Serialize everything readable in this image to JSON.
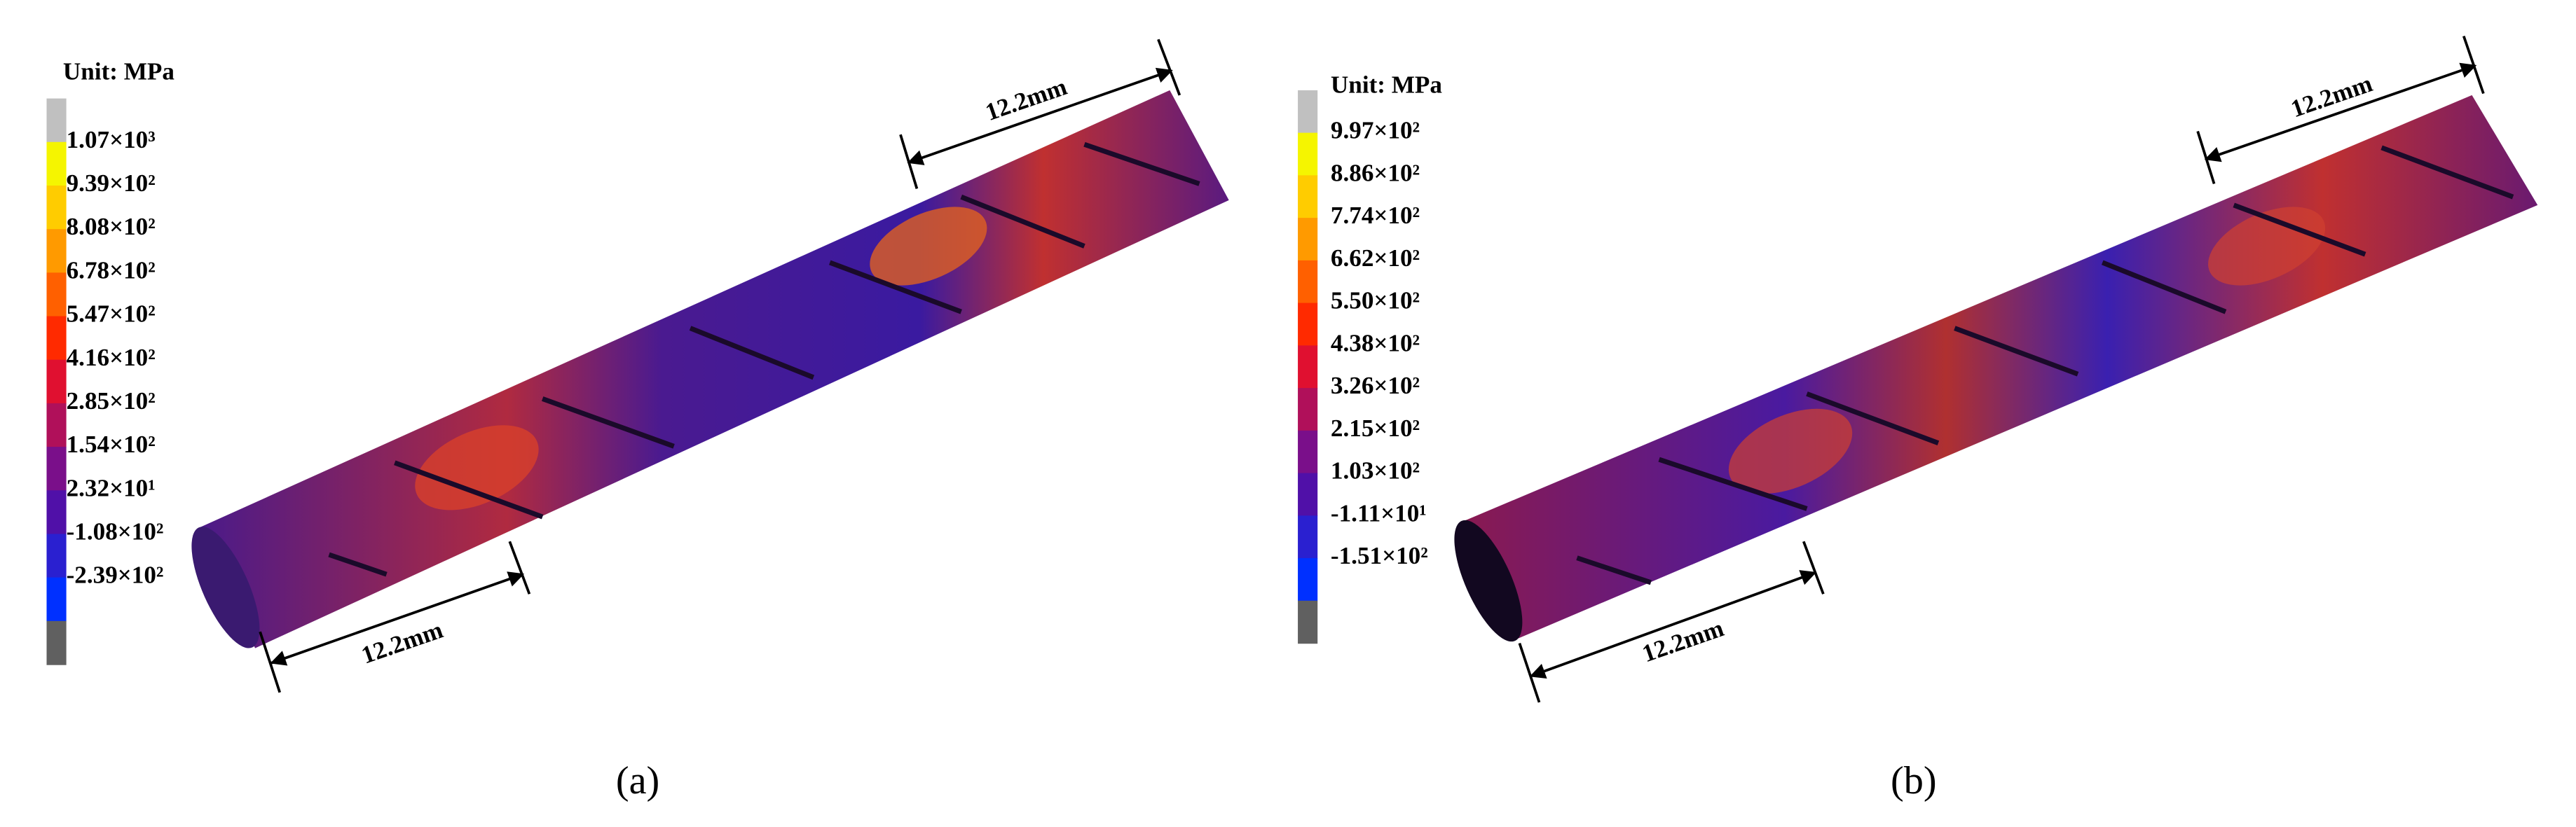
{
  "panels": [
    {
      "label": "(a)",
      "unit": "Unit: MPa",
      "legend_labels": [
        "1.07×10³",
        "9.39×10²",
        "8.08×10²",
        "6.78×10²",
        "5.47×10²",
        "4.16×10²",
        "2.85×10²",
        "1.54×10²",
        "2.32×10¹",
        "-1.08×10²",
        "-2.39×10²"
      ],
      "dimension_labels": [
        "12.2mm",
        "12.2mm"
      ]
    },
    {
      "label": "(b)",
      "unit": "Unit: MPa",
      "legend_labels": [
        "9.97×10²",
        "8.86×10²",
        "7.74×10²",
        "6.62×10²",
        "5.50×10²",
        "4.38×10²",
        "3.26×10²",
        "2.15×10²",
        "1.03×10²",
        "-1.11×10¹",
        "-1.51×10²"
      ],
      "dimension_labels": [
        "12.2mm",
        "12.2mm"
      ]
    }
  ]
}
